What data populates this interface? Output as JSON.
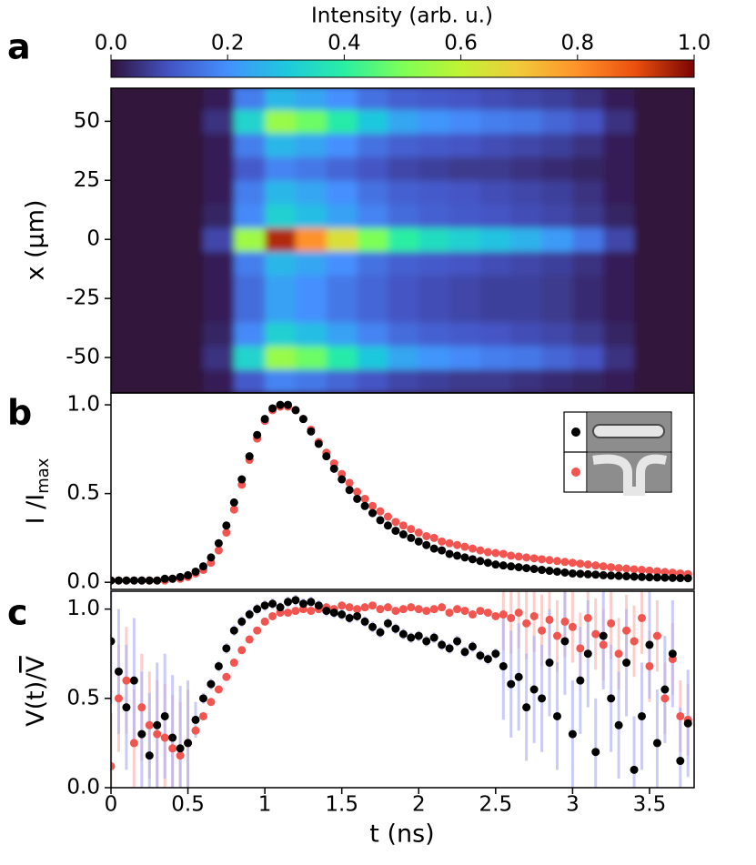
{
  "chart_data": [
    {
      "type": "heatmap",
      "panel": "a",
      "ylabel": "x (μm)",
      "colormap": "turbo",
      "colorbar": {
        "label": "Intensity (arb. u.)",
        "clim": [
          0,
          1
        ],
        "ticks": [
          {
            "value": 0,
            "label": "0.0"
          },
          {
            "value": 0.2,
            "label": "0.2"
          },
          {
            "value": 0.4,
            "label": "0.4"
          },
          {
            "value": 0.6,
            "label": "0.6"
          },
          {
            "value": 0.8,
            "label": "0.8"
          },
          {
            "value": 1,
            "label": "1.0"
          }
        ]
      },
      "xlim": [
        0,
        3.79
      ],
      "ylim": [
        -65,
        64
      ],
      "yticks": [
        50,
        25,
        0,
        -25,
        -50
      ],
      "xbins": [
        0,
        0.2,
        0.4,
        0.6,
        0.8,
        1,
        1.2,
        1.4,
        1.6,
        1.8,
        2,
        2.2,
        2.4,
        2.6,
        2.8,
        3,
        3.2,
        3.4,
        3.6,
        3.8
      ],
      "ybins": [
        -65,
        -55,
        -45,
        -35,
        -25,
        -15,
        -5,
        5,
        15,
        25,
        35,
        45,
        55,
        65
      ],
      "z": [
        [
          0,
          0,
          0,
          0.02,
          0.11,
          0.18,
          0.16,
          0.13,
          0.1,
          0.08,
          0.07,
          0.06,
          0.06,
          0.05,
          0.04,
          0.03,
          0.02,
          0,
          0
        ],
        [
          0,
          0,
          0,
          0.05,
          0.33,
          0.54,
          0.48,
          0.39,
          0.3,
          0.24,
          0.21,
          0.19,
          0.17,
          0.16,
          0.13,
          0.1,
          0.05,
          0,
          0
        ],
        [
          0,
          0,
          0,
          0.03,
          0.19,
          0.32,
          0.28,
          0.23,
          0.18,
          0.14,
          0.12,
          0.11,
          0.1,
          0.09,
          0.08,
          0.06,
          0.03,
          0,
          0
        ],
        [
          0,
          0,
          0,
          0.02,
          0.14,
          0.23,
          0.2,
          0.16,
          0.13,
          0.1,
          0.09,
          0.08,
          0.07,
          0.07,
          0.06,
          0.04,
          0.02,
          0,
          0
        ],
        [
          0,
          0,
          0,
          0.02,
          0.14,
          0.23,
          0.2,
          0.16,
          0.13,
          0.1,
          0.09,
          0.08,
          0.07,
          0.07,
          0.06,
          0.04,
          0.02,
          0,
          0
        ],
        [
          0,
          0,
          0,
          0.02,
          0.17,
          0.27,
          0.24,
          0.2,
          0.15,
          0.12,
          0.11,
          0.1,
          0.09,
          0.08,
          0.07,
          0.05,
          0.02,
          0,
          0
        ],
        [
          0,
          0,
          0,
          0.08,
          0.55,
          0.95,
          0.8,
          0.65,
          0.5,
          0.4,
          0.35,
          0.32,
          0.29,
          0.26,
          0.22,
          0.16,
          0.08,
          0,
          0
        ],
        [
          0,
          0,
          0,
          0.03,
          0.19,
          0.32,
          0.28,
          0.23,
          0.18,
          0.14,
          0.12,
          0.11,
          0.1,
          0.09,
          0.08,
          0.06,
          0.03,
          0,
          0
        ],
        [
          0,
          0,
          0,
          0.02,
          0.17,
          0.27,
          0.24,
          0.2,
          0.15,
          0.12,
          0.11,
          0.1,
          0.09,
          0.08,
          0.07,
          0.05,
          0.02,
          0,
          0
        ],
        [
          0,
          0,
          0,
          0.02,
          0.11,
          0.18,
          0.16,
          0.13,
          0.1,
          0.08,
          0.07,
          0.06,
          0.06,
          0.05,
          0.04,
          0.03,
          0.02,
          0,
          0
        ],
        [
          0,
          0,
          0,
          0.02,
          0.17,
          0.27,
          0.24,
          0.2,
          0.15,
          0.12,
          0.11,
          0.1,
          0.09,
          0.08,
          0.07,
          0.05,
          0.02,
          0,
          0
        ],
        [
          0,
          0,
          0,
          0.05,
          0.33,
          0.54,
          0.48,
          0.39,
          0.3,
          0.24,
          0.21,
          0.19,
          0.17,
          0.16,
          0.13,
          0.1,
          0.05,
          0,
          0
        ],
        [
          0,
          0,
          0,
          0.02,
          0.17,
          0.27,
          0.24,
          0.2,
          0.15,
          0.12,
          0.11,
          0.1,
          0.09,
          0.08,
          0.07,
          0.05,
          0.02,
          0,
          0
        ]
      ]
    },
    {
      "type": "scatter",
      "panel": "b",
      "ylabel": "I /I",
      "ylabel_sub": "max",
      "xlim": [
        0,
        3.79
      ],
      "ylim": [
        -0.04,
        1.067
      ],
      "yticks": [
        {
          "value": 0,
          "label": "0.0"
        },
        {
          "value": 0.5,
          "label": "0.5"
        },
        {
          "value": 1,
          "label": "1.0"
        }
      ],
      "x": [
        0,
        0.05,
        0.1,
        0.15,
        0.2,
        0.25,
        0.3,
        0.35,
        0.4,
        0.45,
        0.5,
        0.55,
        0.6,
        0.65,
        0.7,
        0.75,
        0.8,
        0.85,
        0.9,
        0.95,
        1,
        1.05,
        1.1,
        1.15,
        1.2,
        1.25,
        1.3,
        1.35,
        1.4,
        1.45,
        1.5,
        1.55,
        1.6,
        1.65,
        1.7,
        1.75,
        1.8,
        1.85,
        1.9,
        1.95,
        2,
        2.05,
        2.1,
        2.15,
        2.2,
        2.25,
        2.3,
        2.35,
        2.4,
        2.45,
        2.5,
        2.55,
        2.6,
        2.65,
        2.7,
        2.75,
        2.8,
        2.85,
        2.9,
        2.95,
        3,
        3.05,
        3.1,
        3.15,
        3.2,
        3.25,
        3.3,
        3.35,
        3.4,
        3.45,
        3.5,
        3.55,
        3.6,
        3.65,
        3.7,
        3.75
      ],
      "series": [
        {
          "color": "#f25450",
          "values": [
            0.01,
            0.01,
            0.01,
            0.01,
            0.01,
            0.01,
            0.01,
            0.01,
            0.02,
            0.02,
            0.03,
            0.05,
            0.07,
            0.11,
            0.18,
            0.28,
            0.41,
            0.55,
            0.69,
            0.81,
            0.91,
            0.97,
            0.99,
            0.99,
            0.97,
            0.92,
            0.86,
            0.79,
            0.73,
            0.67,
            0.61,
            0.56,
            0.51,
            0.47,
            0.43,
            0.4,
            0.37,
            0.34,
            0.32,
            0.3,
            0.28,
            0.26,
            0.25,
            0.23,
            0.22,
            0.21,
            0.2,
            0.19,
            0.18,
            0.17,
            0.165,
            0.16,
            0.15,
            0.145,
            0.14,
            0.135,
            0.13,
            0.125,
            0.12,
            0.115,
            0.11,
            0.105,
            0.1,
            0.095,
            0.09,
            0.085,
            0.08,
            0.077,
            0.073,
            0.07,
            0.066,
            0.062,
            0.058,
            0.054,
            0.05,
            0.046
          ]
        },
        {
          "color": "#000000",
          "values": [
            0.01,
            0.01,
            0.01,
            0.01,
            0.01,
            0.01,
            0.01,
            0.02,
            0.02,
            0.03,
            0.04,
            0.06,
            0.09,
            0.14,
            0.22,
            0.32,
            0.45,
            0.58,
            0.71,
            0.83,
            0.92,
            0.98,
            1,
            1,
            0.97,
            0.92,
            0.85,
            0.78,
            0.71,
            0.64,
            0.58,
            0.52,
            0.47,
            0.43,
            0.39,
            0.35,
            0.32,
            0.29,
            0.27,
            0.25,
            0.23,
            0.21,
            0.19,
            0.18,
            0.16,
            0.15,
            0.14,
            0.13,
            0.12,
            0.11,
            0.1,
            0.095,
            0.09,
            0.085,
            0.08,
            0.075,
            0.07,
            0.065,
            0.06,
            0.055,
            0.05,
            0.048,
            0.045,
            0.043,
            0.04,
            0.038,
            0.036,
            0.034,
            0.032,
            0.03,
            0.028,
            0.027,
            0.026,
            0.025,
            0.024,
            0.023
          ]
        }
      ]
    },
    {
      "type": "errorscatter",
      "panel": "c",
      "ylabel": "V(t)/",
      "ylabel_overline": "V",
      "xlabel": "t (ns)",
      "xlim": [
        0,
        3.79
      ],
      "ylim": [
        0,
        1.1
      ],
      "xticks": [
        0,
        0.5,
        1,
        1.5,
        2,
        2.5,
        3,
        3.5
      ],
      "yticks": [
        {
          "value": 0,
          "label": "0.0"
        },
        {
          "value": 0.5,
          "label": "0.5"
        },
        {
          "value": 1,
          "label": "1.0"
        }
      ],
      "x": [
        0,
        0.05,
        0.1,
        0.15,
        0.2,
        0.25,
        0.3,
        0.35,
        0.4,
        0.45,
        0.5,
        0.55,
        0.6,
        0.65,
        0.7,
        0.75,
        0.8,
        0.85,
        0.9,
        0.95,
        1,
        1.05,
        1.1,
        1.15,
        1.2,
        1.25,
        1.3,
        1.35,
        1.4,
        1.45,
        1.5,
        1.55,
        1.6,
        1.65,
        1.7,
        1.75,
        1.8,
        1.85,
        1.9,
        1.95,
        2,
        2.05,
        2.1,
        2.15,
        2.2,
        2.25,
        2.3,
        2.35,
        2.4,
        2.45,
        2.5,
        2.55,
        2.6,
        2.65,
        2.7,
        2.75,
        2.8,
        2.85,
        2.9,
        2.95,
        3,
        3.05,
        3.1,
        3.15,
        3.2,
        3.25,
        3.3,
        3.35,
        3.4,
        3.45,
        3.5,
        3.55,
        3.6,
        3.65,
        3.7,
        3.75
      ],
      "series": [
        {
          "color": "#f25450",
          "error_color": "#f6b9b5",
          "values": [
            0.12,
            0.5,
            0.6,
            0.25,
            0.45,
            0.35,
            0.3,
            0.28,
            0.22,
            0.18,
            0.25,
            0.32,
            0.4,
            0.48,
            0.55,
            0.62,
            0.7,
            0.77,
            0.83,
            0.88,
            0.93,
            0.96,
            0.98,
            0.98,
            0.99,
            1,
            0.99,
            1,
            1.01,
            1,
            1.02,
            1.01,
            1,
            1.01,
            1.02,
            1,
            1.01,
            0.99,
            1,
            1.01,
            1,
            0.99,
            1,
            1.01,
            0.98,
            1,
            0.99,
            0.97,
            0.99,
            0.98,
            0.96,
            0.97,
            0.95,
            0.98,
            0.92,
            0.96,
            0.88,
            0.94,
            0.85,
            0.93,
            0.9,
            0.78,
            0.95,
            0.86,
            0.8,
            0.92,
            0.75,
            0.88,
            0.82,
            0.95,
            0.68,
            0.85,
            0.5,
            0.72,
            0.4,
            0.38
          ],
          "errors": [
            0.3,
            0.3,
            0.3,
            0.3,
            0.3,
            0.3,
            0.3,
            0.3,
            0.3,
            0.3,
            0.3,
            0.02,
            0.02,
            0.02,
            0.02,
            0.02,
            0.02,
            0.02,
            0.02,
            0.02,
            0.02,
            0.02,
            0.02,
            0.02,
            0.02,
            0.02,
            0.02,
            0.02,
            0.02,
            0.02,
            0.02,
            0.02,
            0.02,
            0.02,
            0.02,
            0.02,
            0.02,
            0.02,
            0.02,
            0.02,
            0.02,
            0.02,
            0.02,
            0.02,
            0.02,
            0.02,
            0.02,
            0.02,
            0.02,
            0.02,
            0.02,
            0.2,
            0.2,
            0.2,
            0.2,
            0.2,
            0.2,
            0.2,
            0.2,
            0.2,
            0.2,
            0.2,
            0.2,
            0.2,
            0.2,
            0.2,
            0.2,
            0.2,
            0.2,
            0.2,
            0.2,
            0.2,
            0.2,
            0.2,
            0.2,
            0.2
          ]
        },
        {
          "color": "#000000",
          "error_color": "#b3b5f2",
          "values": [
            0.82,
            0.65,
            0.45,
            0.6,
            0.3,
            0.18,
            0.35,
            0.4,
            0.28,
            0.22,
            0.25,
            0.38,
            0.5,
            0.58,
            0.68,
            0.78,
            0.88,
            0.93,
            0.97,
            1,
            1.02,
            1.03,
            1.01,
            1.04,
            1.05,
            1.03,
            1.04,
            1.02,
            0.99,
            0.98,
            0.97,
            0.95,
            0.96,
            0.93,
            0.9,
            0.87,
            0.92,
            0.89,
            0.86,
            0.84,
            0.85,
            0.82,
            0.84,
            0.8,
            0.78,
            0.82,
            0.76,
            0.79,
            0.74,
            0.72,
            0.75,
            0.68,
            0.58,
            0.62,
            0.45,
            0.55,
            0.5,
            0.7,
            0.4,
            0.82,
            0.3,
            0.6,
            0.75,
            0.2,
            0.85,
            0.5,
            0.35,
            0.7,
            0.1,
            0.4,
            0.8,
            0.25,
            0.55,
            0.75,
            0.15,
            0.36
          ],
          "errors": [
            0.35,
            0.35,
            0.35,
            0.35,
            0.35,
            0.35,
            0.35,
            0.35,
            0.35,
            0.35,
            0.35,
            0.1,
            0.03,
            0.03,
            0.03,
            0.03,
            0.03,
            0.03,
            0.03,
            0.03,
            0.03,
            0.03,
            0.03,
            0.03,
            0.03,
            0.03,
            0.03,
            0.03,
            0.03,
            0.03,
            0.03,
            0.03,
            0.03,
            0.03,
            0.03,
            0.03,
            0.03,
            0.03,
            0.03,
            0.03,
            0.03,
            0.03,
            0.03,
            0.03,
            0.03,
            0.03,
            0.03,
            0.03,
            0.03,
            0.03,
            0.03,
            0.3,
            0.3,
            0.3,
            0.3,
            0.3,
            0.3,
            0.3,
            0.3,
            0.3,
            0.3,
            0.3,
            0.3,
            0.3,
            0.3,
            0.3,
            0.3,
            0.3,
            0.3,
            0.3,
            0.3,
            0.3,
            0.3,
            0.3,
            0.3,
            0.3
          ]
        }
      ]
    }
  ]
}
